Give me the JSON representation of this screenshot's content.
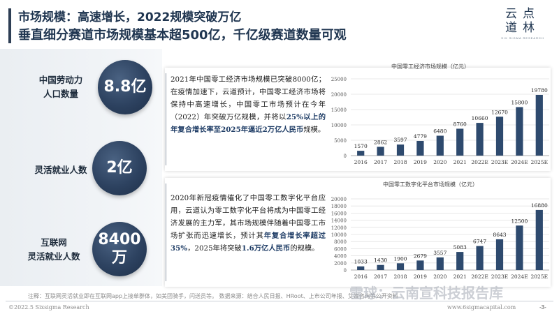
{
  "header": {
    "title_line1": "市场规模：高速增长，2022规模突破万亿",
    "title_line2": "垂直细分赛道市场规模基本超500亿，千亿级赛道数量可观"
  },
  "logo": {
    "row1": "云点",
    "row2": "道林",
    "sub": "SIX SIGMA RESEARCH"
  },
  "stats": [
    {
      "label": "中国劳动力\n人口数量",
      "value": "8.8亿"
    },
    {
      "label": "灵活就业人数",
      "value": "2亿"
    },
    {
      "label": "互联网\n灵活就业人数",
      "value": "8400\n万"
    }
  ],
  "card1": {
    "text_normal": "2021年中国零工经济市场规模已突破8000亿；在疫情加速下，云道预计，中国零工经济市场将保持中高速增长，中国零工市场预计在今年（2022）年突破万亿规模，并将以",
    "text_highlight": "25%以上的年复合增长率至2025年逼近2万亿人民币",
    "text_end": "规模。"
  },
  "card2": {
    "text_normal": "2020年新冠疫情催化了中国零工数字化平台应用，云道认为零工数字化平台将成为中国零工经济发展的主力军，其市场规模伴随着中国零工市场扩张而迅速增长，预计其",
    "text_highlight": "年复合增长率超过35%",
    "text_mid": "，2025年将突破",
    "text_highlight2": "1.6万亿人民币",
    "text_end": "的规模。"
  },
  "chart_data": [
    {
      "type": "bar",
      "title": "中国零工经济市场规模（亿元）",
      "categories": [
        "2016",
        "2017",
        "2018",
        "2019",
        "2020",
        "2021",
        "2022E",
        "2023E",
        "2024E",
        "2025E"
      ],
      "values": [
        1570,
        2862,
        3597,
        4779,
        6480,
        8760,
        10660,
        12670,
        15800,
        19780
      ],
      "ylim": [
        0,
        25000
      ],
      "yticks": [
        0,
        5000,
        10000,
        15000,
        20000,
        25000
      ],
      "grid": true,
      "color": "#2e4a6e"
    },
    {
      "type": "bar",
      "title": "中国零工数字化平台市场规模（亿元）",
      "categories": [
        "2016",
        "2017",
        "2018",
        "2019",
        "2020",
        "2021",
        "2022E",
        "2023E",
        "2024E",
        "2025E"
      ],
      "values": [
        1033,
        1430,
        1900,
        2679,
        3557,
        5083,
        6747,
        8643,
        12500,
        16880
      ],
      "ylim": [
        0,
        20000
      ],
      "yticks": [
        0,
        2000,
        4000,
        6000,
        8000,
        10000,
        12000,
        14000,
        16000,
        18000,
        20000
      ],
      "grid": true,
      "color": "#2e4a6e"
    }
  ],
  "footnote": "注释：互联网灵活就业即在互联网app上接单群体，如美团骑手，闪送员等。      数据来源：结合人民日报、HRoot、上市公司年报、艾媒咨询等公开资料",
  "footer": {
    "left": "©2022.5 Sixsigma Research",
    "right": "www.6sigmacapital.com",
    "page": "-3-"
  },
  "watermark": "雪球：云南宣科技报告库"
}
